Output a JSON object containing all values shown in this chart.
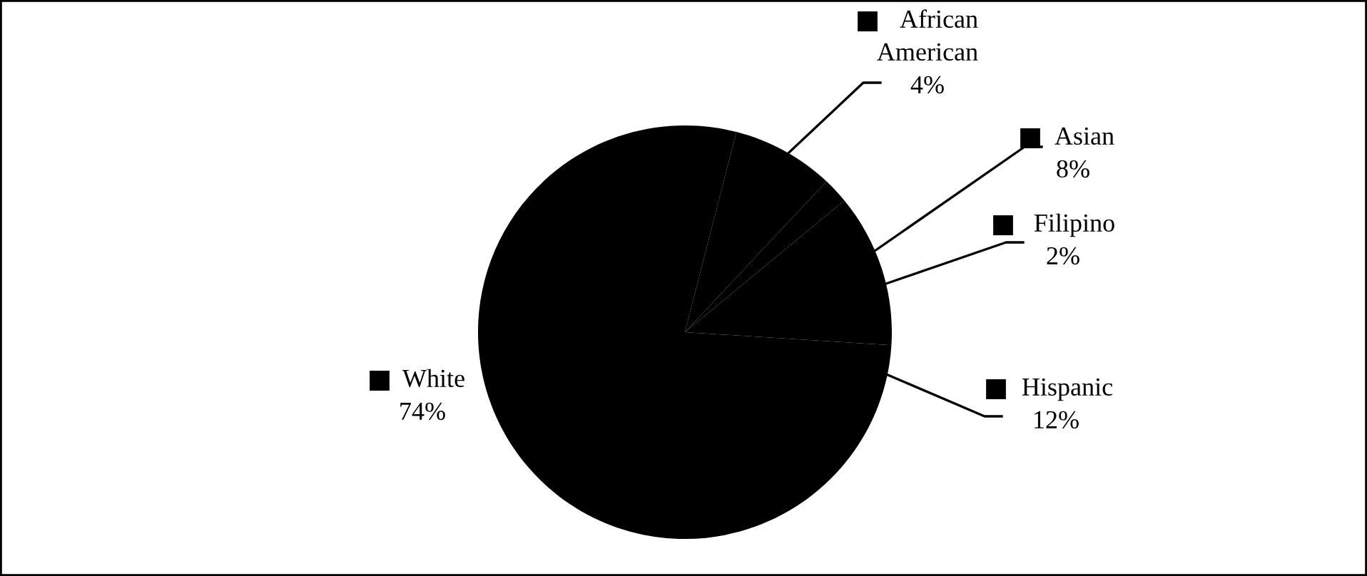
{
  "chart_data": {
    "type": "pie",
    "categories": [
      "African American",
      "Asian",
      "Filipino",
      "Hispanic",
      "White"
    ],
    "values": [
      4,
      8,
      2,
      12,
      74
    ],
    "value_labels": [
      "4%",
      "8%",
      "2%",
      "12%",
      "74%"
    ],
    "colors": [
      "#000000",
      "#000000",
      "#000000",
      "#000000",
      "#000000"
    ],
    "legend": "right"
  }
}
